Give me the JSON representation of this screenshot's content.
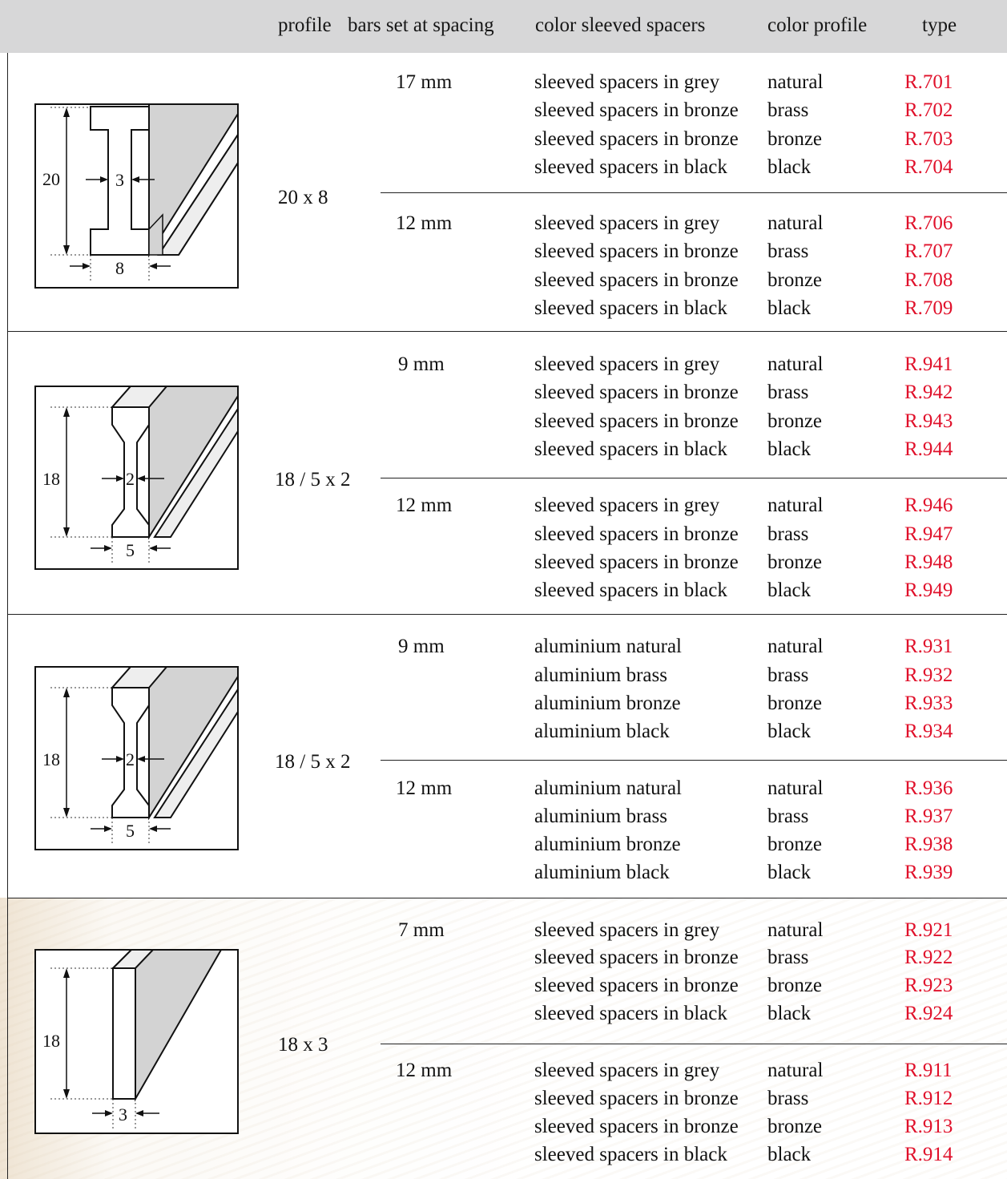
{
  "header": {
    "profile": "profile",
    "spacing": "bars set at spacing",
    "color_spacers": "color sleeved spacers",
    "color_profile": "color profile",
    "type": "type"
  },
  "groups": [
    {
      "profile": "20 x 8",
      "diagram": {
        "height": "20",
        "web": "3",
        "width": "8"
      },
      "subgroups": [
        {
          "spacing": "17 mm",
          "rows": [
            {
              "spacer": "sleeved spacers in grey",
              "color": "natural",
              "type": "R.701"
            },
            {
              "spacer": "sleeved spacers in bronze",
              "color": "brass",
              "type": "R.702"
            },
            {
              "spacer": "sleeved spacers in bronze",
              "color": "bronze",
              "type": "R.703"
            },
            {
              "spacer": "sleeved spacers in black",
              "color": "black",
              "type": "R.704"
            }
          ]
        },
        {
          "spacing": "12 mm",
          "rows": [
            {
              "spacer": "sleeved spacers in grey",
              "color": "natural",
              "type": "R.706"
            },
            {
              "spacer": "sleeved spacers in bronze",
              "color": "brass",
              "type": "R.707"
            },
            {
              "spacer": "sleeved spacers in bronze",
              "color": "bronze",
              "type": "R.708"
            },
            {
              "spacer": "sleeved spacers in black",
              "color": "black",
              "type": "R.709"
            }
          ]
        }
      ]
    },
    {
      "profile": "18 / 5 x 2",
      "diagram": {
        "height": "18",
        "web": "2",
        "width": "5"
      },
      "subgroups": [
        {
          "spacing": "9 mm",
          "rows": [
            {
              "spacer": "sleeved spacers in grey",
              "color": "natural",
              "type": "R.941"
            },
            {
              "spacer": "sleeved spacers in bronze",
              "color": "brass",
              "type": "R.942"
            },
            {
              "spacer": "sleeved spacers in bronze",
              "color": "bronze",
              "type": "R.943"
            },
            {
              "spacer": "sleeved spacers in black",
              "color": "black",
              "type": "R.944"
            }
          ]
        },
        {
          "spacing": "12 mm",
          "rows": [
            {
              "spacer": "sleeved spacers in grey",
              "color": "natural",
              "type": "R.946"
            },
            {
              "spacer": "sleeved spacers in bronze",
              "color": "brass",
              "type": "R.947"
            },
            {
              "spacer": "sleeved spacers in bronze",
              "color": "bronze",
              "type": "R.948"
            },
            {
              "spacer": "sleeved spacers in black",
              "color": "black",
              "type": "R.949"
            }
          ]
        }
      ]
    },
    {
      "profile": "18 / 5 x 2",
      "diagram": {
        "height": "18",
        "web": "2",
        "width": "5"
      },
      "subgroups": [
        {
          "spacing": "9 mm",
          "rows": [
            {
              "spacer": "aluminium natural",
              "color": "natural",
              "type": "R.931"
            },
            {
              "spacer": "aluminium brass",
              "color": "brass",
              "type": "R.932"
            },
            {
              "spacer": "aluminium bronze",
              "color": "bronze",
              "type": "R.933"
            },
            {
              "spacer": "aluminium black",
              "color": "black",
              "type": "R.934"
            }
          ]
        },
        {
          "spacing": "12 mm",
          "rows": [
            {
              "spacer": "aluminium natural",
              "color": "natural",
              "type": "R.936"
            },
            {
              "spacer": "aluminium brass",
              "color": "brass",
              "type": "R.937"
            },
            {
              "spacer": "aluminium bronze",
              "color": "bronze",
              "type": "R.938"
            },
            {
              "spacer": "aluminium black",
              "color": "black",
              "type": "R.939"
            }
          ]
        }
      ]
    },
    {
      "profile": "18 x 3",
      "diagram": {
        "height": "18",
        "width": "3"
      },
      "subgroups": [
        {
          "spacing": "7 mm",
          "rows": [
            {
              "spacer": "sleeved spacers in grey",
              "color": "natural",
              "type": "R.921"
            },
            {
              "spacer": "sleeved spacers in bronze",
              "color": "brass",
              "type": "R.922"
            },
            {
              "spacer": "sleeved spacers in bronze",
              "color": "bronze",
              "type": "R.923"
            },
            {
              "spacer": "sleeved spacers in black",
              "color": "black",
              "type": "R.924"
            }
          ]
        },
        {
          "spacing": "12 mm",
          "rows": [
            {
              "spacer": "sleeved spacers in grey",
              "color": "natural",
              "type": "R.911"
            },
            {
              "spacer": "sleeved spacers in bronze",
              "color": "brass",
              "type": "R.912"
            },
            {
              "spacer": "sleeved spacers in bronze",
              "color": "bronze",
              "type": "R.913"
            },
            {
              "spacer": "sleeved spacers in black",
              "color": "black",
              "type": "R.914"
            }
          ]
        }
      ]
    }
  ],
  "colors": {
    "header_bg": "#d7d7d8",
    "type_code": "#e0102a",
    "profile_fill": "#d3d3d3"
  }
}
